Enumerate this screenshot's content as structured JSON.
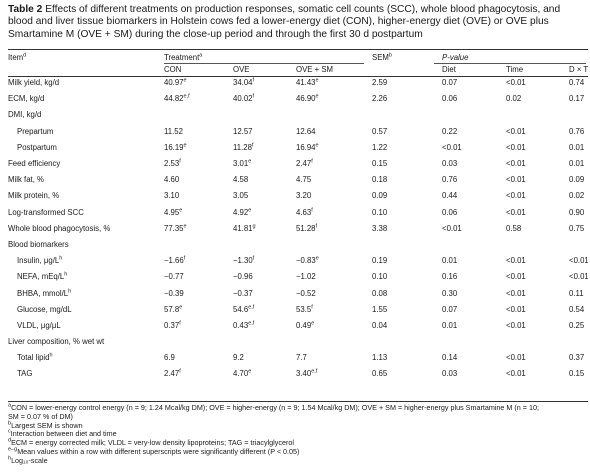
{
  "caption": {
    "label": "Table 2",
    "text": "Effects of different treatments on production responses, somatic cell counts (SCC), whole blood phagocytosis, and blood and liver tissue biomarkers in Holstein cows fed a lower-energy diet (CON), higher-energy diet (OVE) or OVE plus Smartamine M (OVE + SM) during the close-up period and through the first 30 d postpartum"
  },
  "header": {
    "item": "Item",
    "item_sup": "d",
    "treatment": "Treatment",
    "treatment_sup": "a",
    "sem": "SEM",
    "sem_sup": "b",
    "pvalue": "P-value",
    "con": "CON",
    "ove": "OVE",
    "ovesm": "OVE + SM",
    "diet": "Diet",
    "time": "Time",
    "dxt": "D × T",
    "dxt_sup": "c"
  },
  "rows": [
    {
      "label": "Milk yield, kg/d",
      "indent": false,
      "con": "40.97",
      "con_s": "e",
      "ove": "34.04",
      "ove_s": "f",
      "sm": "41.43",
      "sm_s": "e",
      "sem": "2.59",
      "diet": "0.07",
      "time": "<0.01",
      "dxt": "0.74"
    },
    {
      "label": "ECM, kg/d",
      "indent": false,
      "con": "44.82",
      "con_s": "e,f",
      "ove": "40.02",
      "ove_s": "f",
      "sm": "46.90",
      "sm_s": "e",
      "sem": "2.26",
      "diet": "0.06",
      "time": "0.02",
      "dxt": "0.17"
    },
    {
      "label": "DMI, kg/d",
      "indent": false,
      "con": "",
      "con_s": "",
      "ove": "",
      "ove_s": "",
      "sm": "",
      "sm_s": "",
      "sem": "",
      "diet": "",
      "time": "",
      "dxt": ""
    },
    {
      "label": "Prepartum",
      "indent": true,
      "con": "11.52",
      "con_s": "",
      "ove": "12.57",
      "ove_s": "",
      "sm": "12.64",
      "sm_s": "",
      "sem": "0.57",
      "diet": "0.22",
      "time": "<0.01",
      "dxt": "0.76"
    },
    {
      "label": "Postpartum",
      "indent": true,
      "con": "16.19",
      "con_s": "e",
      "ove": "11.28",
      "ove_s": "f",
      "sm": "16.94",
      "sm_s": "e",
      "sem": "1.22",
      "diet": "<0.01",
      "time": "<0.01",
      "dxt": "0.01"
    },
    {
      "label": "Feed efficiency",
      "indent": false,
      "con": "2.53",
      "con_s": "f",
      "ove": "3.01",
      "ove_s": "e",
      "sm": "2.47",
      "sm_s": "f",
      "sem": "0.15",
      "diet": "0.03",
      "time": "<0.01",
      "dxt": "0.01"
    },
    {
      "label": "Milk fat, %",
      "indent": false,
      "con": "4.60",
      "con_s": "",
      "ove": "4.58",
      "ove_s": "",
      "sm": "4.75",
      "sm_s": "",
      "sem": "0.18",
      "diet": "0.76",
      "time": "<0.01",
      "dxt": "0.09"
    },
    {
      "label": "Milk protein, %",
      "indent": false,
      "con": "3.10",
      "con_s": "",
      "ove": "3.05",
      "ove_s": "",
      "sm": "3.20",
      "sm_s": "",
      "sem": "0.09",
      "diet": "0.44",
      "time": "<0.01",
      "dxt": "0.02"
    },
    {
      "label": "Log-transformed SCC",
      "indent": false,
      "con": "4.95",
      "con_s": "e",
      "ove": "4.92",
      "ove_s": "e",
      "sm": "4.63",
      "sm_s": "f",
      "sem": "0.10",
      "diet": "0.06",
      "time": "<0.01",
      "dxt": "0.90"
    },
    {
      "label": "Whole blood phagocytosis, %",
      "indent": false,
      "con": "77.35",
      "con_s": "e",
      "ove": "41.81",
      "ove_s": "g",
      "sm": "51.28",
      "sm_s": "f",
      "sem": "3.38",
      "diet": "<0.01",
      "time": "0.58",
      "dxt": "0.75"
    },
    {
      "label": "Blood biomarkers",
      "indent": false,
      "con": "",
      "con_s": "",
      "ove": "",
      "ove_s": "",
      "sm": "",
      "sm_s": "",
      "sem": "",
      "diet": "",
      "time": "",
      "dxt": ""
    },
    {
      "label": "Insulin, μg/L",
      "label_s": "h",
      "indent": true,
      "con": "−1.66",
      "con_s": "f",
      "ove": "−1.30",
      "ove_s": "f",
      "sm": "−0.83",
      "sm_s": "e",
      "sem": "0.19",
      "diet": "0.01",
      "time": "<0.01",
      "dxt": "<0.01"
    },
    {
      "label": "NEFA, mEq/L",
      "label_s": "h",
      "indent": true,
      "con": "−0.77",
      "con_s": "",
      "ove": "−0.96",
      "ove_s": "",
      "sm": "−1.02",
      "sm_s": "",
      "sem": "0.10",
      "diet": "0.16",
      "time": "<0.01",
      "dxt": "<0.01"
    },
    {
      "label": "BHBA, mmol/L",
      "label_s": "h",
      "indent": true,
      "con": "−0.39",
      "con_s": "",
      "ove": "−0.37",
      "ove_s": "",
      "sm": "−0.52",
      "sm_s": "",
      "sem": "0.08",
      "diet": "0.30",
      "time": "<0.01",
      "dxt": "0.11"
    },
    {
      "label": "Glucose, mg/dL",
      "indent": true,
      "con": "57.8",
      "con_s": "e",
      "ove": "54.6",
      "ove_s": "e,f",
      "sm": "53.5",
      "sm_s": "f",
      "sem": "1.55",
      "diet": "0.07",
      "time": "<0.01",
      "dxt": "0.54"
    },
    {
      "label": "VLDL, μg/μL",
      "indent": true,
      "con": "0.37",
      "con_s": "f",
      "ove": "0.43",
      "ove_s": "e,f",
      "sm": "0.49",
      "sm_s": "e",
      "sem": "0.04",
      "diet": "0.01",
      "time": "<0.01",
      "dxt": "0.25"
    },
    {
      "label": "Liver composition, % wet wt",
      "indent": false,
      "con": "",
      "con_s": "",
      "ove": "",
      "ove_s": "",
      "sm": "",
      "sm_s": "",
      "sem": "",
      "diet": "",
      "time": "",
      "dxt": ""
    },
    {
      "label": "Total lipid",
      "label_s": "h",
      "indent": true,
      "con": "6.9",
      "con_s": "",
      "ove": "9.2",
      "ove_s": "",
      "sm": "7.7",
      "sm_s": "",
      "sem": "1.13",
      "diet": "0.14",
      "time": "<0.01",
      "dxt": "0.37"
    },
    {
      "label": "TAG",
      "indent": true,
      "con": "2.47",
      "con_s": "f",
      "ove": "4.70",
      "ove_s": "e",
      "sm": "3.40",
      "sm_s": "e,f",
      "sem": "0.65",
      "diet": "0.03",
      "time": "<0.01",
      "dxt": "0.15"
    }
  ],
  "footnotes": [
    {
      "sup": "a",
      "text": "CON = lower-energy control energy (n = 9; 1.24 Mcal/kg DM); OVE = higher-energy (n = 9; 1.54 Mcal/kg DM); OVE + SM = higher-energy plus Smartamine M (n = 10;"
    },
    {
      "sup": "",
      "text": "SM = 0.07 % of DM)"
    },
    {
      "sup": "b",
      "text": "Largest SEM is shown"
    },
    {
      "sup": "c",
      "text": "Interaction between diet and time"
    },
    {
      "sup": "d",
      "text": "ECM = energy corrected milk; VLDL = very-low density lipoproteins; TAG = triacylglycerol"
    },
    {
      "sup": "e–g",
      "text": "Mean values within a row with different superscripts were significantly different (P < 0.05)"
    },
    {
      "sup": "h",
      "text": "Log₁₀-scale"
    }
  ]
}
